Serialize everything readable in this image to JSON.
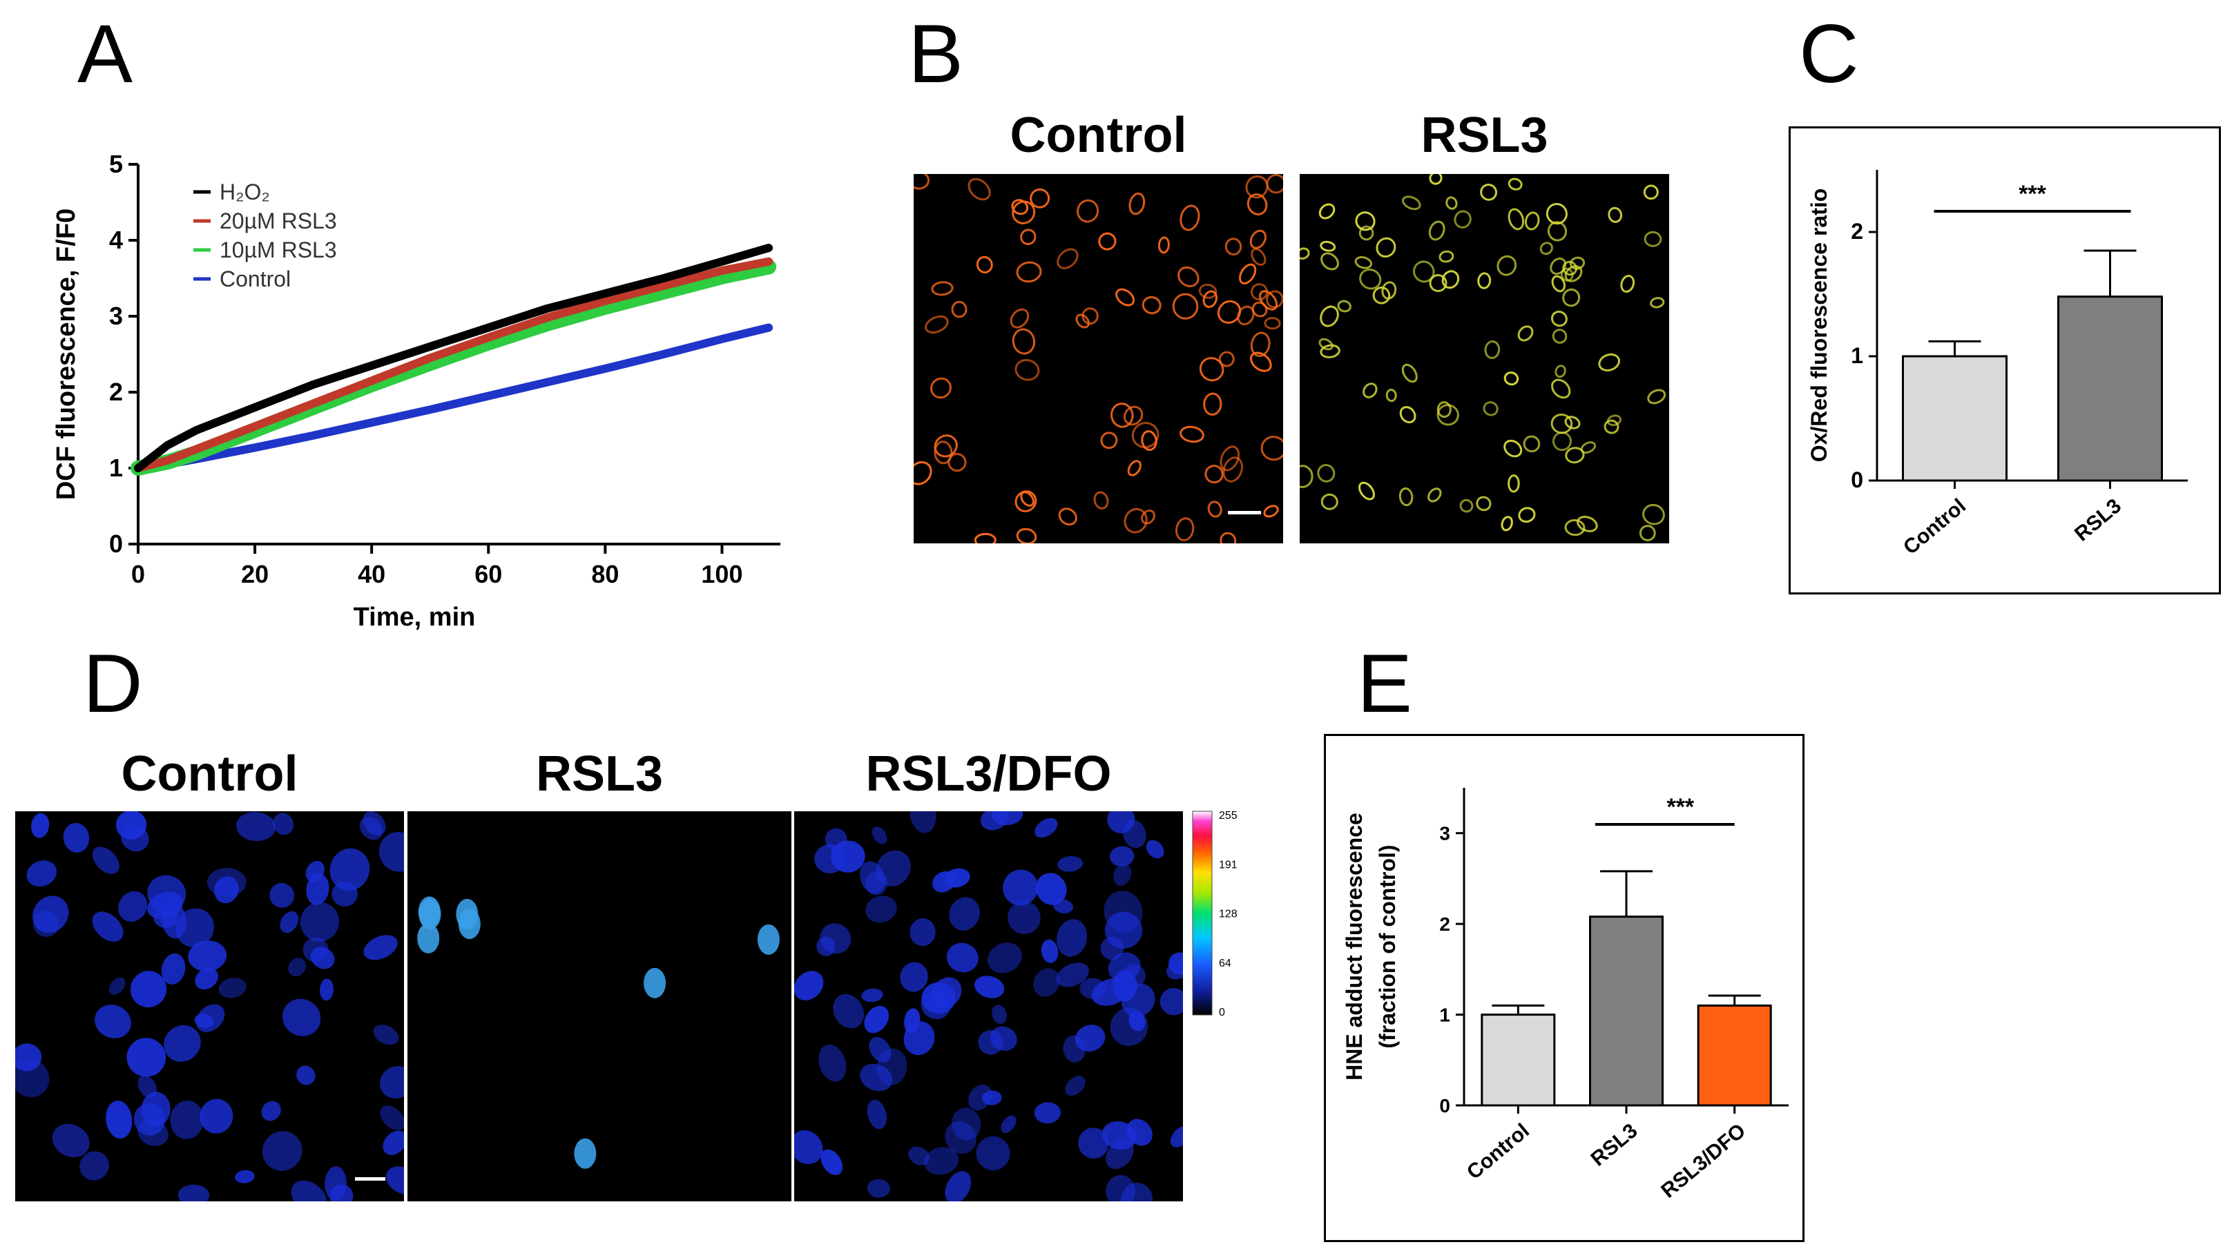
{
  "panels": {
    "A": {
      "letter": "A",
      "chart_data": {
        "type": "line",
        "xlabel": "Time, min",
        "ylabel": "DCF fluorescence, F/F0",
        "xlim": [
          0,
          110
        ],
        "ylim": [
          0,
          5
        ],
        "xticks": [
          "0",
          "20",
          "40",
          "60",
          "80",
          "100"
        ],
        "yticks": [
          "0",
          "1",
          "2",
          "3",
          "4",
          "5"
        ],
        "legend_position": "top-left",
        "grid": false,
        "series": [
          {
            "name": "H₂O₂",
            "color": "#000000",
            "x": [
              0,
              5,
              10,
              20,
              30,
              40,
              50,
              60,
              70,
              80,
              90,
              100,
              108
            ],
            "y": [
              1.0,
              1.3,
              1.5,
              1.8,
              2.1,
              2.35,
              2.6,
              2.85,
              3.1,
              3.3,
              3.5,
              3.72,
              3.9
            ]
          },
          {
            "name": "20µM RSL3",
            "color": "#c0392b",
            "x": [
              0,
              5,
              10,
              20,
              30,
              40,
              50,
              60,
              70,
              80,
              90,
              100,
              108
            ],
            "y": [
              1.0,
              1.1,
              1.25,
              1.55,
              1.85,
              2.15,
              2.45,
              2.72,
              2.98,
              3.2,
              3.4,
              3.6,
              3.72
            ]
          },
          {
            "name": "10µM RSL3",
            "color": "#2ecc40",
            "x": [
              0,
              5,
              10,
              20,
              30,
              40,
              50,
              60,
              70,
              80,
              90,
              100,
              108
            ],
            "y": [
              1.0,
              1.08,
              1.2,
              1.5,
              1.8,
              2.1,
              2.38,
              2.65,
              2.9,
              3.12,
              3.32,
              3.52,
              3.65
            ]
          },
          {
            "name": "Control",
            "color": "#1f35c8",
            "x": [
              0,
              5,
              10,
              20,
              30,
              40,
              50,
              60,
              70,
              80,
              90,
              100,
              108
            ],
            "y": [
              1.0,
              1.05,
              1.12,
              1.27,
              1.43,
              1.6,
              1.77,
              1.95,
              2.13,
              2.31,
              2.5,
              2.7,
              2.85
            ]
          }
        ]
      }
    },
    "B": {
      "letter": "B",
      "images": [
        {
          "title": "Control",
          "tint": "#ff6a1a"
        },
        {
          "title": "RSL3",
          "tint": "#d8dc3a"
        }
      ]
    },
    "C": {
      "letter": "C",
      "chart_data": {
        "type": "bar",
        "ylabel": "Ox/Red fluorescence ratio",
        "categories": [
          "Control",
          "RSL3"
        ],
        "values": [
          1.0,
          1.48
        ],
        "errors": [
          0.12,
          0.37
        ],
        "colors": [
          "#d9d9d9",
          "#7f7f7f"
        ],
        "ylim": [
          0,
          2.5
        ],
        "yticks": [
          "0",
          "1",
          "2"
        ],
        "significance": {
          "label": "***",
          "between": [
            0,
            1
          ]
        }
      }
    },
    "D": {
      "letter": "D",
      "images": [
        {
          "title": "Control",
          "tint": "#1a2fd8"
        },
        {
          "title": "RSL3",
          "tint": "#3aa0e8"
        },
        {
          "title": "RSL3/DFO",
          "tint": "#1a2fd8"
        }
      ],
      "colorbar": {
        "ticks": [
          "255",
          "191",
          "128",
          "64",
          "0"
        ]
      }
    },
    "E": {
      "letter": "E",
      "chart_data": {
        "type": "bar",
        "ylabel": "HNE adduct fluorescence",
        "ylabel2": "(fraction of control)",
        "categories": [
          "Control",
          "RSL3",
          "RSL3/DFO"
        ],
        "values": [
          1.0,
          2.08,
          1.1
        ],
        "errors": [
          0.1,
          0.5,
          0.11
        ],
        "colors": [
          "#d9d9d9",
          "#7f7f7f",
          "#ff6010"
        ],
        "ylim": [
          0,
          3.5
        ],
        "yticks": [
          "0",
          "1",
          "2",
          "3"
        ],
        "significance": {
          "label": "***",
          "between": [
            1,
            2
          ]
        }
      }
    }
  }
}
